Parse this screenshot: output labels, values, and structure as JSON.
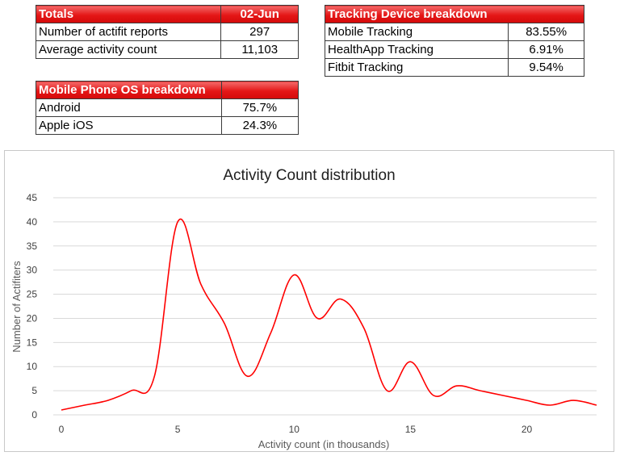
{
  "totals": {
    "header": "Totals",
    "date": "02-Jun",
    "rows": [
      {
        "label": "Number of actifit reports",
        "value": "297"
      },
      {
        "label": "Average activity count",
        "value": "11,103"
      }
    ]
  },
  "os_breakdown": {
    "header": "Mobile Phone OS breakdown",
    "rows": [
      {
        "label": "Android",
        "value": "75.7%"
      },
      {
        "label": "Apple iOS",
        "value": "24.3%"
      }
    ]
  },
  "device_breakdown": {
    "header": "Tracking Device breakdown",
    "rows": [
      {
        "label": "Mobile Tracking",
        "value": "83.55%"
      },
      {
        "label": "HealthApp Tracking",
        "value": "6.91%"
      },
      {
        "label": "Fitbit Tracking",
        "value": "9.54%"
      }
    ]
  },
  "chart_data": {
    "type": "line",
    "title": "Activity Count distribution",
    "xlabel": "Activity count (in thousands)",
    "ylabel": "Number of Actifiters",
    "x": [
      0,
      1,
      2,
      3,
      4,
      5,
      6,
      7,
      8,
      9,
      10,
      11,
      12,
      13,
      14,
      15,
      16,
      17,
      18,
      19,
      20,
      21,
      22,
      23
    ],
    "series": [
      {
        "values": [
          1,
          2,
          3,
          5,
          8,
          40,
          27,
          19,
          8,
          17,
          29,
          20,
          24,
          18,
          5,
          11,
          4,
          6,
          5,
          4,
          3,
          2,
          3,
          2
        ],
        "color": "#ff0000"
      }
    ],
    "xlim": [
      0,
      23
    ],
    "ylim": [
      0,
      45
    ],
    "xticks": [
      0,
      5,
      10,
      15,
      20
    ],
    "yticks": [
      0,
      5,
      10,
      15,
      20,
      25,
      30,
      35,
      40,
      45
    ],
    "grid": true,
    "legend": "none"
  }
}
